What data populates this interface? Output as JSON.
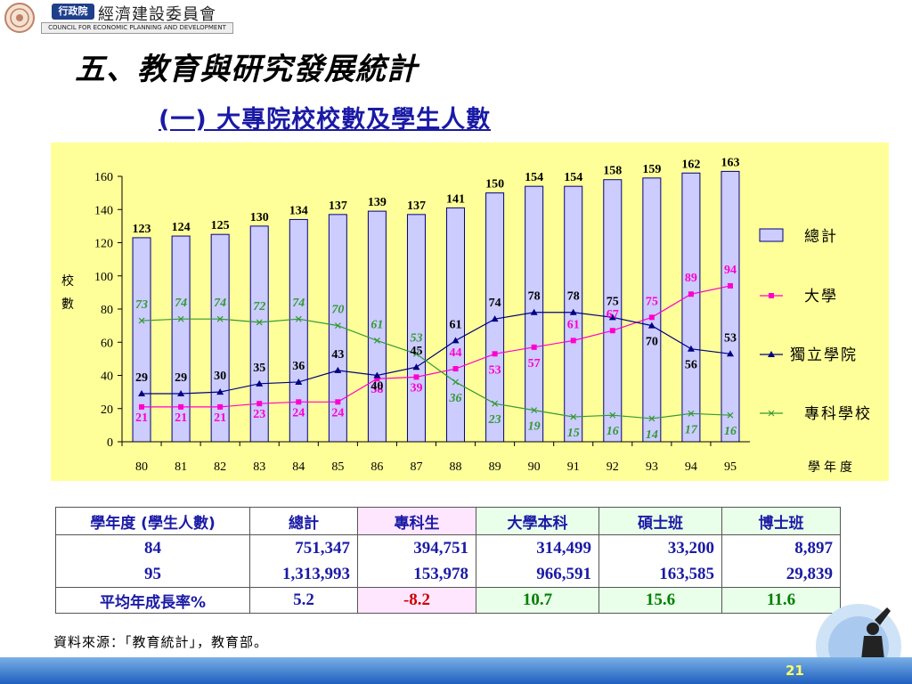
{
  "header": {
    "badge": "行政院",
    "org_name_cn": "經濟建設委員會",
    "org_name_en": "COUNCIL FOR ECONOMIC PLANNING AND DEVELOPMENT"
  },
  "title": "五、教育與研究發展統計",
  "subtitle": "(一) 大專院校校數及學生人數",
  "chart_data": {
    "type": "bar",
    "categories": [
      "80",
      "81",
      "82",
      "83",
      "84",
      "85",
      "86",
      "87",
      "88",
      "89",
      "90",
      "91",
      "92",
      "93",
      "94",
      "95"
    ],
    "ylabel": "校數",
    "xlabel": "學年度",
    "ylim": [
      0,
      160
    ],
    "yticks": [
      0,
      20,
      40,
      60,
      80,
      100,
      120,
      140,
      160
    ],
    "legend_position": "right",
    "series": [
      {
        "name": "總計",
        "type": "bar",
        "color": "#ccccff",
        "values": [
          123,
          124,
          125,
          130,
          134,
          137,
          139,
          137,
          141,
          150,
          154,
          154,
          158,
          159,
          162,
          163
        ]
      },
      {
        "name": "大學",
        "type": "line",
        "color": "#ff00cc",
        "marker": "square",
        "values": [
          21,
          21,
          21,
          23,
          24,
          24,
          38,
          39,
          44,
          53,
          57,
          61,
          67,
          75,
          89,
          94
        ]
      },
      {
        "name": "獨立學院",
        "type": "line",
        "color": "#000080",
        "marker": "triangle",
        "values": [
          29,
          29,
          30,
          35,
          36,
          43,
          40,
          45,
          61,
          74,
          78,
          78,
          75,
          70,
          56,
          53
        ]
      },
      {
        "name": "專科學校",
        "type": "line",
        "color": "#339933",
        "marker": "x",
        "values": [
          73,
          74,
          74,
          72,
          74,
          70,
          61,
          53,
          36,
          23,
          19,
          15,
          16,
          14,
          17,
          16
        ]
      }
    ]
  },
  "table": {
    "headers": [
      "學年度 (學生人數)",
      "總計",
      "專科生",
      "大學本科",
      "碩士班",
      "博士班"
    ],
    "rows": [
      [
        "84",
        "751,347",
        "394,751",
        "314,499",
        "33,200",
        "8,897"
      ],
      [
        "95",
        "1,313,993",
        "153,978",
        "966,591",
        "163,585",
        "29,839"
      ]
    ],
    "growth": [
      "平均年成長率%",
      "5.2",
      "-8.2",
      "10.7",
      "15.6",
      "11.6"
    ]
  },
  "source_note": "資料來源：「教育統計」，教育部。",
  "page_number": "21"
}
